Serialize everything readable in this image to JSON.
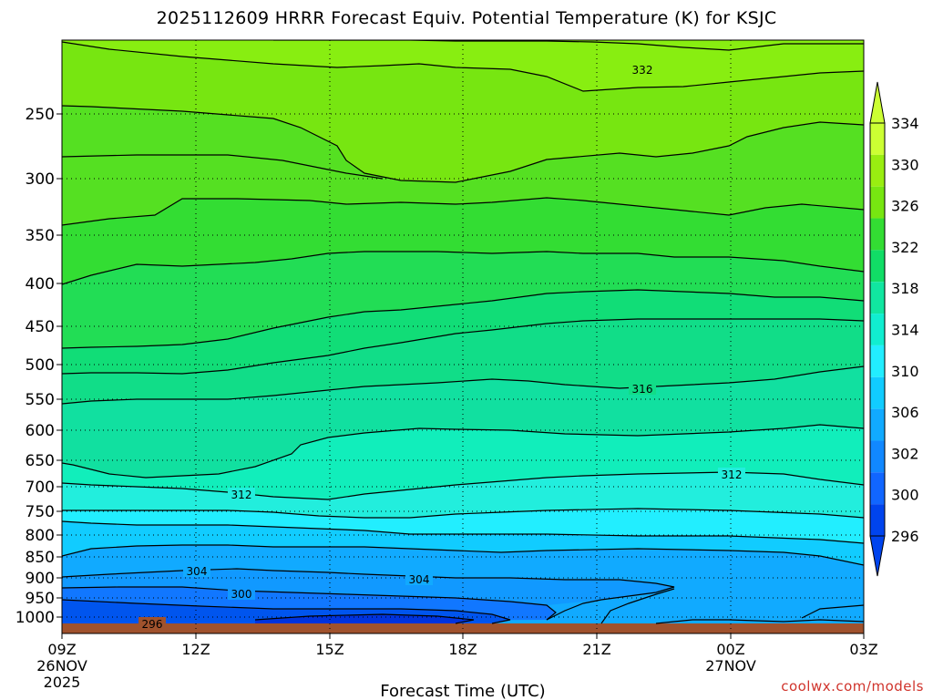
{
  "chart_data": {
    "type": "heatmap",
    "subtype": "time-height filled contour",
    "title": "2025112609 HRRR Forecast Equiv. Potential Temperature (K) for KSJC",
    "xlabel": "Forecast Time (UTC)",
    "x_ticks": [
      {
        "label": "09Z",
        "sub": [
          "26NOV",
          "2025"
        ]
      },
      {
        "label": "12Z",
        "sub": []
      },
      {
        "label": "15Z",
        "sub": []
      },
      {
        "label": "18Z",
        "sub": []
      },
      {
        "label": "21Z",
        "sub": []
      },
      {
        "label": "00Z",
        "sub": [
          "27NOV"
        ]
      },
      {
        "label": "03Z",
        "sub": []
      }
    ],
    "y_ticks": [
      "250",
      "300",
      "350",
      "400",
      "450",
      "500",
      "550",
      "600",
      "650",
      "700",
      "750",
      "800",
      "850",
      "900",
      "950",
      "1000"
    ],
    "ylim": [
      200,
      1013
    ],
    "yscale": "log",
    "colorbar": {
      "labels": [
        "334",
        "330",
        "326",
        "322",
        "318",
        "314",
        "310",
        "306",
        "302",
        "300",
        "296"
      ],
      "colors": [
        "#ccff33",
        "#99ee11",
        "#77e611",
        "#33dd33",
        "#11dd66",
        "#11e6a0",
        "#11eed0",
        "#22eeff",
        "#11ccff",
        "#11aaff",
        "#1188ff",
        "#1166ff",
        "#0044ee"
      ],
      "extend": "both"
    },
    "contour_labels": [
      "332",
      "316",
      "312",
      "312",
      "304",
      "304",
      "300",
      "296"
    ],
    "ground_color": "#a0522d",
    "grid": true
  },
  "credit": "coolwx.com/models"
}
